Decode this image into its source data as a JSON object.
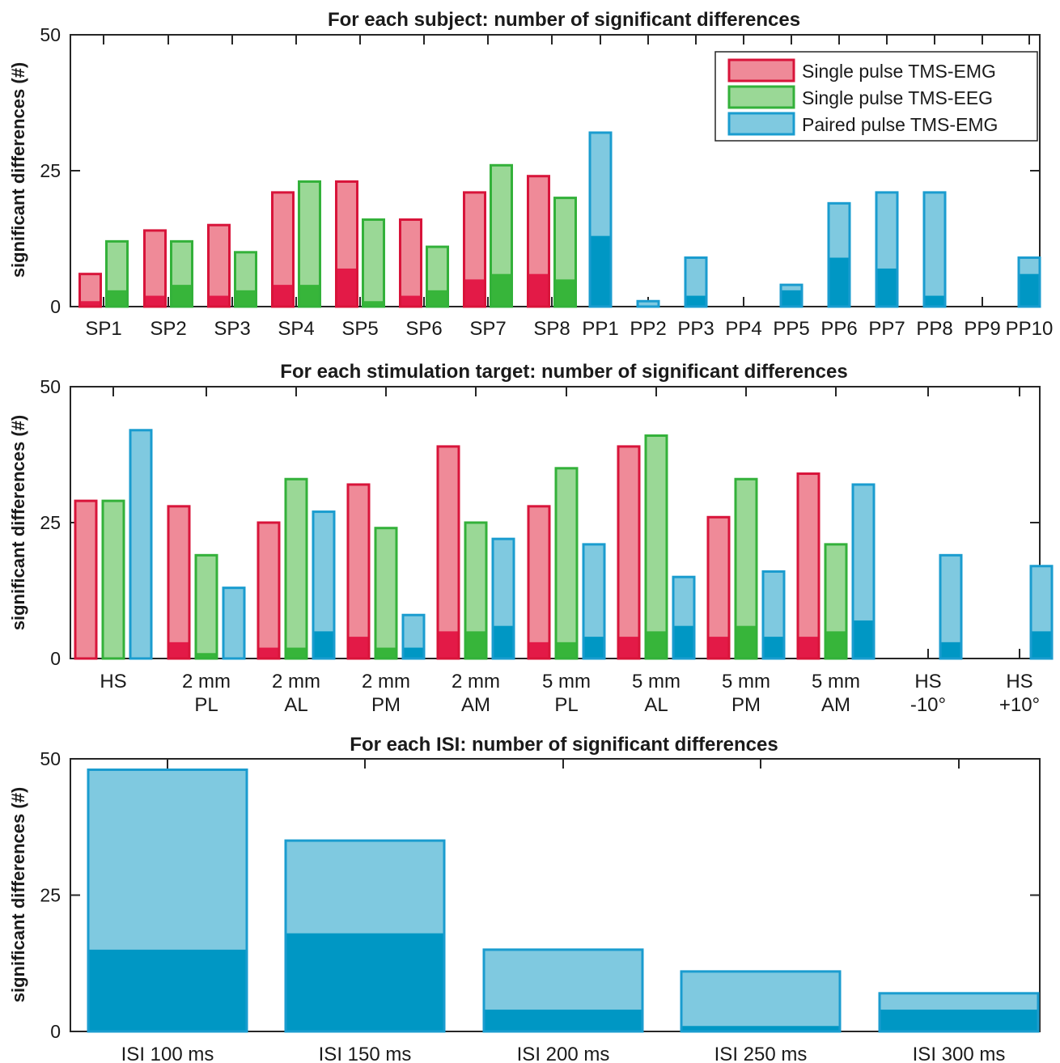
{
  "colors": {
    "emg_light": "#ef8a98",
    "emg_dark": "#e31a47",
    "emg_edge": "#d8143a",
    "eeg_light": "#9ad896",
    "eeg_dark": "#37b53a",
    "eeg_edge": "#33b13a",
    "pp_light": "#7fc9e0",
    "pp_dark": "#0097c4",
    "pp_edge": "#1a9ccf",
    "axis": "#262626"
  },
  "chart_data": [
    {
      "type": "bar",
      "title": "For each subject: number of significant differences",
      "ylabel": "significant differences (#)",
      "ylim": [
        0,
        50
      ],
      "yticks": [
        "0",
        "25",
        "50"
      ],
      "legend": {
        "placement": "top-right",
        "entries": [
          {
            "label": "Single pulse TMS-EMG",
            "series": "emg"
          },
          {
            "label": "Single pulse TMS-EEG",
            "series": "eeg"
          },
          {
            "label": "Paired pulse TMS-EMG",
            "series": "pp"
          }
        ]
      },
      "groups": [
        {
          "label": [
            "SP1"
          ],
          "bars": [
            {
              "series": "emg",
              "total": 6,
              "inner": 1
            },
            {
              "series": "eeg",
              "total": 12,
              "inner": 3
            }
          ]
        },
        {
          "label": [
            "SP2"
          ],
          "bars": [
            {
              "series": "emg",
              "total": 14,
              "inner": 2
            },
            {
              "series": "eeg",
              "total": 12,
              "inner": 4
            }
          ]
        },
        {
          "label": [
            "SP3"
          ],
          "bars": [
            {
              "series": "emg",
              "total": 15,
              "inner": 2
            },
            {
              "series": "eeg",
              "total": 10,
              "inner": 3
            }
          ]
        },
        {
          "label": [
            "SP4"
          ],
          "bars": [
            {
              "series": "emg",
              "total": 21,
              "inner": 4
            },
            {
              "series": "eeg",
              "total": 23,
              "inner": 4
            }
          ]
        },
        {
          "label": [
            "SP5"
          ],
          "bars": [
            {
              "series": "emg",
              "total": 23,
              "inner": 7
            },
            {
              "series": "eeg",
              "total": 16,
              "inner": 1
            }
          ]
        },
        {
          "label": [
            "SP6"
          ],
          "bars": [
            {
              "series": "emg",
              "total": 16,
              "inner": 2
            },
            {
              "series": "eeg",
              "total": 11,
              "inner": 3
            }
          ]
        },
        {
          "label": [
            "SP7"
          ],
          "bars": [
            {
              "series": "emg",
              "total": 21,
              "inner": 5
            },
            {
              "series": "eeg",
              "total": 26,
              "inner": 6
            }
          ]
        },
        {
          "label": [
            "SP8"
          ],
          "bars": [
            {
              "series": "emg",
              "total": 24,
              "inner": 6
            },
            {
              "series": "eeg",
              "total": 20,
              "inner": 5
            }
          ]
        },
        {
          "label": [
            "PP1"
          ],
          "bars": [
            {
              "series": "pp",
              "total": 32,
              "inner": 13
            }
          ]
        },
        {
          "label": [
            "PP2"
          ],
          "bars": [
            {
              "series": "pp",
              "total": 1,
              "inner": 0
            }
          ]
        },
        {
          "label": [
            "PP3"
          ],
          "bars": [
            {
              "series": "pp",
              "total": 9,
              "inner": 2
            }
          ]
        },
        {
          "label": [
            "PP4"
          ],
          "bars": [
            {
              "series": "pp",
              "total": 0,
              "inner": 0
            }
          ]
        },
        {
          "label": [
            "PP5"
          ],
          "bars": [
            {
              "series": "pp",
              "total": 4,
              "inner": 3
            }
          ]
        },
        {
          "label": [
            "PP6"
          ],
          "bars": [
            {
              "series": "pp",
              "total": 19,
              "inner": 9
            }
          ]
        },
        {
          "label": [
            "PP7"
          ],
          "bars": [
            {
              "series": "pp",
              "total": 21,
              "inner": 7
            }
          ]
        },
        {
          "label": [
            "PP8"
          ],
          "bars": [
            {
              "series": "pp",
              "total": 21,
              "inner": 2
            }
          ]
        },
        {
          "label": [
            "PP9"
          ],
          "bars": [
            {
              "series": "pp",
              "total": 0,
              "inner": 0
            }
          ]
        },
        {
          "label": [
            "PP10"
          ],
          "bars": [
            {
              "series": "pp",
              "total": 9,
              "inner": 6
            }
          ]
        }
      ]
    },
    {
      "type": "bar",
      "title": "For each stimulation target: number of significant differences",
      "ylabel": "significant differences (#)",
      "ylim": [
        0,
        50
      ],
      "yticks": [
        "0",
        "25",
        "50"
      ],
      "groups": [
        {
          "label": [
            "HS"
          ],
          "bars": [
            {
              "series": "emg",
              "total": 29,
              "inner": 0
            },
            {
              "series": "eeg",
              "total": 29,
              "inner": 0
            },
            {
              "series": "pp",
              "total": 42,
              "inner": 0
            }
          ]
        },
        {
          "label": [
            "2 mm",
            "PL"
          ],
          "bars": [
            {
              "series": "emg",
              "total": 28,
              "inner": 3
            },
            {
              "series": "eeg",
              "total": 19,
              "inner": 1
            },
            {
              "series": "pp",
              "total": 13,
              "inner": 0
            }
          ]
        },
        {
          "label": [
            "2 mm",
            "AL"
          ],
          "bars": [
            {
              "series": "emg",
              "total": 25,
              "inner": 2
            },
            {
              "series": "eeg",
              "total": 33,
              "inner": 2
            },
            {
              "series": "pp",
              "total": 27,
              "inner": 5
            }
          ]
        },
        {
          "label": [
            "2 mm",
            "PM"
          ],
          "bars": [
            {
              "series": "emg",
              "total": 32,
              "inner": 4
            },
            {
              "series": "eeg",
              "total": 24,
              "inner": 2
            },
            {
              "series": "pp",
              "total": 8,
              "inner": 2
            }
          ]
        },
        {
          "label": [
            "2 mm",
            "AM"
          ],
          "bars": [
            {
              "series": "emg",
              "total": 39,
              "inner": 5
            },
            {
              "series": "eeg",
              "total": 25,
              "inner": 5
            },
            {
              "series": "pp",
              "total": 22,
              "inner": 6
            }
          ]
        },
        {
          "label": [
            "5 mm",
            "PL"
          ],
          "bars": [
            {
              "series": "emg",
              "total": 28,
              "inner": 3
            },
            {
              "series": "eeg",
              "total": 35,
              "inner": 3
            },
            {
              "series": "pp",
              "total": 21,
              "inner": 4
            }
          ]
        },
        {
          "label": [
            "5 mm",
            "AL"
          ],
          "bars": [
            {
              "series": "emg",
              "total": 39,
              "inner": 4
            },
            {
              "series": "eeg",
              "total": 41,
              "inner": 5
            },
            {
              "series": "pp",
              "total": 15,
              "inner": 6
            }
          ]
        },
        {
          "label": [
            "5 mm",
            "PM"
          ],
          "bars": [
            {
              "series": "emg",
              "total": 26,
              "inner": 4
            },
            {
              "series": "eeg",
              "total": 33,
              "inner": 6
            },
            {
              "series": "pp",
              "total": 16,
              "inner": 4
            }
          ]
        },
        {
          "label": [
            "5 mm",
            "AM"
          ],
          "bars": [
            {
              "series": "emg",
              "total": 34,
              "inner": 4
            },
            {
              "series": "eeg",
              "total": 21,
              "inner": 5
            },
            {
              "series": "pp",
              "total": 32,
              "inner": 7
            }
          ]
        },
        {
          "label": [
            "HS",
            "-10°"
          ],
          "bars": [
            {
              "series": "pp",
              "total": 19,
              "inner": 3
            }
          ]
        },
        {
          "label": [
            "HS",
            "+10°"
          ],
          "bars": [
            {
              "series": "pp",
              "total": 17,
              "inner": 5
            }
          ]
        }
      ]
    },
    {
      "type": "bar",
      "title": "For each ISI: number of significant differences",
      "ylabel": "significant differences (#)",
      "ylim": [
        0,
        50
      ],
      "yticks": [
        "0",
        "25",
        "50"
      ],
      "groups": [
        {
          "label": [
            "ISI 100 ms"
          ],
          "bars": [
            {
              "series": "pp",
              "total": 48,
              "inner": 15
            }
          ]
        },
        {
          "label": [
            "ISI 150 ms"
          ],
          "bars": [
            {
              "series": "pp",
              "total": 35,
              "inner": 18
            }
          ]
        },
        {
          "label": [
            "ISI 200 ms"
          ],
          "bars": [
            {
              "series": "pp",
              "total": 15,
              "inner": 4
            }
          ]
        },
        {
          "label": [
            "ISI 250 ms"
          ],
          "bars": [
            {
              "series": "pp",
              "total": 11,
              "inner": 1
            }
          ]
        },
        {
          "label": [
            "ISI 300 ms"
          ],
          "bars": [
            {
              "series": "pp",
              "total": 7,
              "inner": 4
            }
          ]
        }
      ]
    }
  ]
}
